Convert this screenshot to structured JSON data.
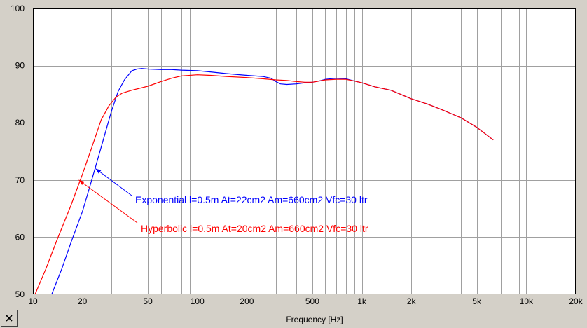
{
  "chart_data": {
    "type": "line",
    "xlabel": "Frequency [Hz]",
    "ylabel": "",
    "title": "",
    "xscale": "log",
    "xlim": [
      10,
      20000
    ],
    "ylim": [
      50,
      100
    ],
    "grid": true,
    "x_ticks": [
      {
        "value": 10,
        "label": "10"
      },
      {
        "value": 20,
        "label": "20"
      },
      {
        "value": 50,
        "label": "50"
      },
      {
        "value": 100,
        "label": "100"
      },
      {
        "value": 200,
        "label": "200"
      },
      {
        "value": 500,
        "label": "500"
      },
      {
        "value": 1000,
        "label": "1k"
      },
      {
        "value": 2000,
        "label": "2k"
      },
      {
        "value": 5000,
        "label": "5k"
      },
      {
        "value": 10000,
        "label": "10k"
      },
      {
        "value": 20000,
        "label": "20k"
      }
    ],
    "y_ticks": [
      {
        "value": 50,
        "label": "50"
      },
      {
        "value": 60,
        "label": "60"
      },
      {
        "value": 70,
        "label": "70"
      },
      {
        "value": 80,
        "label": "80"
      },
      {
        "value": 90,
        "label": "90"
      },
      {
        "value": 100,
        "label": "100"
      }
    ],
    "series": [
      {
        "name": "Exponential l=0.5m At=22cm2 Am=660cm2 Vfc=30 ltr",
        "color": "#0000ff",
        "x": [
          13,
          15,
          17,
          20,
          22,
          25,
          28,
          30,
          33,
          36,
          40,
          43,
          46,
          50,
          60,
          70,
          80,
          100,
          120,
          150,
          200,
          250,
          280,
          300,
          320,
          350,
          400,
          450,
          500,
          550,
          600,
          700,
          800,
          900,
          1000,
          1200,
          1500,
          2000,
          2500,
          3000,
          4000,
          5000,
          6300
        ],
        "values": [
          50,
          54.5,
          59,
          64.5,
          68.5,
          74,
          79,
          82,
          85.5,
          87.5,
          89.1,
          89.4,
          89.5,
          89.4,
          89.3,
          89.3,
          89.2,
          89.1,
          88.9,
          88.6,
          88.3,
          88.1,
          87.8,
          87.2,
          86.8,
          86.7,
          86.8,
          87,
          87.1,
          87.3,
          87.6,
          87.8,
          87.7,
          87.3,
          87,
          86.3,
          85.7,
          84.2,
          83.3,
          82.4,
          80.9,
          79.2,
          77
        ]
      },
      {
        "name": "Hyperbolic l=0.5m At=20cm2 Am=660cm2 Vfc=30 ltr",
        "color": "#ff0000",
        "x": [
          10.3,
          12,
          14,
          17,
          20,
          23,
          26,
          29,
          32,
          35,
          40,
          50,
          60,
          70,
          80,
          100,
          120,
          150,
          200,
          250,
          300,
          350,
          400,
          450,
          500,
          550,
          600,
          700,
          800,
          900,
          1000,
          1200,
          1500,
          2000,
          2500,
          3000,
          4000,
          5000,
          6300
        ],
        "values": [
          50,
          54.5,
          59.5,
          65.5,
          71,
          76,
          80.5,
          83,
          84.5,
          85.2,
          85.7,
          86.4,
          87.2,
          87.8,
          88.2,
          88.4,
          88.3,
          88.1,
          87.9,
          87.7,
          87.5,
          87.4,
          87.2,
          87.1,
          87.1,
          87.3,
          87.5,
          87.6,
          87.6,
          87.3,
          87,
          86.3,
          85.7,
          84.2,
          83.3,
          82.4,
          80.9,
          79.2,
          77
        ]
      }
    ],
    "annotations": [
      {
        "text": "Exponential l=0.5m At=22cm2 Am=660cm2 Vfc=30 ltr",
        "color": "#0000ff",
        "arrow_to": [
          24,
          72
        ]
      },
      {
        "text": "Hyperbolic l=0.5m At=20cm2 Am=660cm2 Vfc=30 ltr",
        "color": "#ff0000",
        "arrow_to": [
          19,
          70
        ]
      }
    ]
  },
  "window": {
    "close_icon": "close-icon",
    "colors": {
      "panel": "#d4d0c8",
      "plot_bg": "#ffffff",
      "grid": "#a0a0a0"
    }
  }
}
